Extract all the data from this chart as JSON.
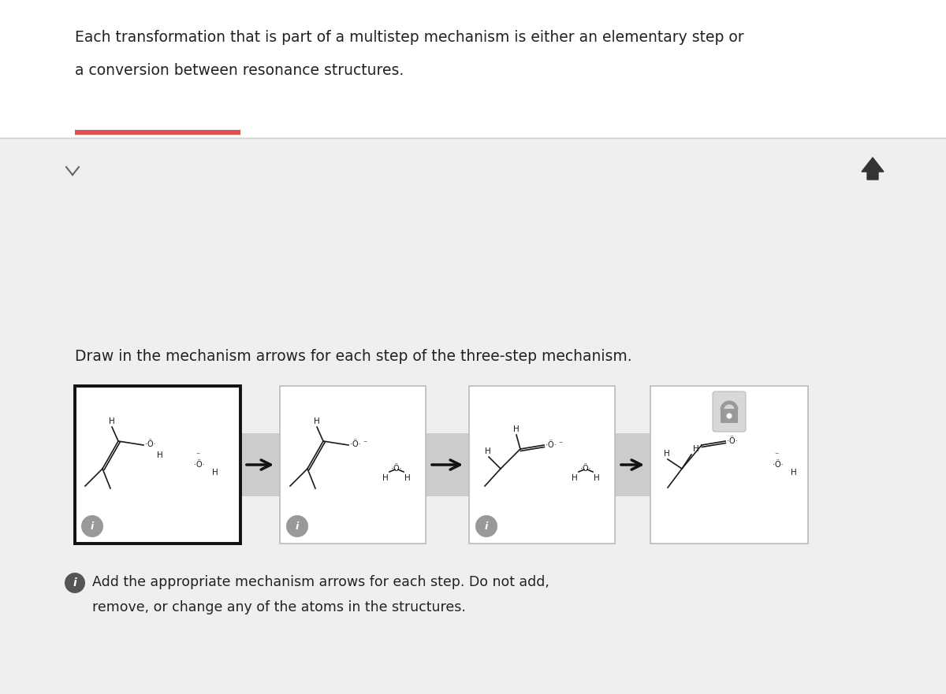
{
  "bg_color": "#ffffff",
  "gray_bg": "#efefef",
  "title_text1": "Each transformation that is part of a multistep mechanism is either an elementary step or",
  "title_text2": "a conversion between resonance structures.",
  "subtitle": "Draw in the mechanism arrows for each step of the three-step mechanism.",
  "info_text1": "Add the appropriate mechanism arrows for each step. Do not add,",
  "info_text2": "remove, or change any of the atoms in the structures.",
  "red_line_color": "#d9534f",
  "box_border_active": "#111111",
  "box_border_inactive": "#bbbbbb",
  "box_bg": "#ffffff",
  "arrow_band_color": "#cccccc",
  "arrow_color": "#111111",
  "info_circle_color": "#999999",
  "lock_color": "#999999",
  "text_color": "#222222",
  "chevron_color": "#666666",
  "up_arrow_color": "#333333"
}
